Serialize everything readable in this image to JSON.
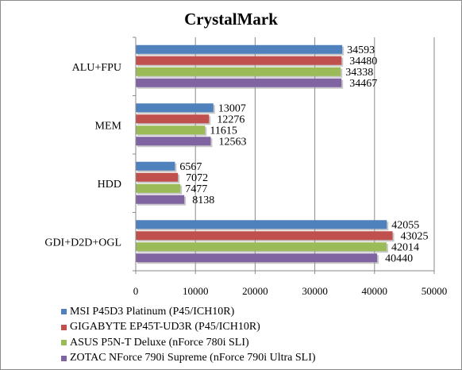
{
  "chart_data": {
    "type": "bar",
    "orientation": "horizontal",
    "title": "CrystalMark",
    "categories": [
      "ALU+FPU",
      "MEM",
      "HDD",
      "GDI+D2D+OGL"
    ],
    "series": [
      {
        "name": "MSI P45D3 Platinum (P45/ICH10R)",
        "color": "#4f81bd",
        "values": [
          34593,
          13007,
          6567,
          42055
        ]
      },
      {
        "name": "GIGABYTE EP45T-UD3R (P45/ICH10R)",
        "color": "#c0504d",
        "values": [
          34480,
          12276,
          7072,
          43025
        ]
      },
      {
        "name": "ASUS P5N-T Deluxe (nForce 780i SLI)",
        "color": "#9bbb59",
        "values": [
          34338,
          11615,
          7477,
          42014
        ]
      },
      {
        "name": "ZOTAC NForce 790i Supreme (nForce 790i Ultra SLI)",
        "color": "#8064a2",
        "values": [
          34467,
          12563,
          8138,
          40440
        ]
      }
    ],
    "xlim": [
      0,
      50000
    ],
    "xticks": [
      "0",
      "10000",
      "20000",
      "30000",
      "40000",
      "50000"
    ],
    "grid": true,
    "legend_position": "bottom"
  }
}
